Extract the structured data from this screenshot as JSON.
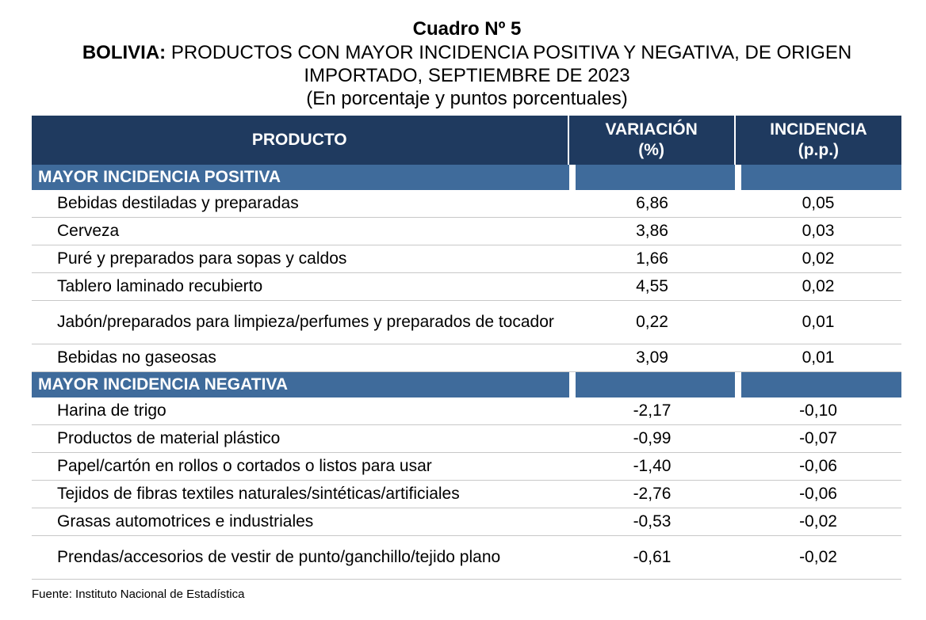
{
  "title": {
    "number": "Cuadro Nº 5",
    "country": "BOLIVIA:",
    "line1": "PRODUCTOS CON MAYOR INCIDENCIA POSITIVA Y NEGATIVA, DE ORIGEN",
    "line2": "IMPORTADO, SEPTIEMBRE DE 2023",
    "units": "(En porcentaje y puntos porcentuales)"
  },
  "header": {
    "product": "PRODUCTO",
    "variation_1": "VARIACIÓN",
    "variation_2": "(%)",
    "incidence_1": "INCIDENCIA",
    "incidence_2": "(p.p.)"
  },
  "positive": {
    "label": "MAYOR INCIDENCIA POSITIVA",
    "rows": [
      {
        "product": "Bebidas destiladas y preparadas",
        "variation": "6,86",
        "incidence": "0,05"
      },
      {
        "product": "Cerveza",
        "variation": "3,86",
        "incidence": "0,03"
      },
      {
        "product": "Puré y preparados para sopas y caldos",
        "variation": "1,66",
        "incidence": "0,02"
      },
      {
        "product": "Tablero laminado recubierto",
        "variation": "4,55",
        "incidence": "0,02"
      },
      {
        "product": "Jabón/preparados para limpieza/perfumes y preparados de tocador",
        "variation": "0,22",
        "incidence": "0,01"
      },
      {
        "product": "Bebidas no gaseosas",
        "variation": "3,09",
        "incidence": "0,01"
      }
    ]
  },
  "negative": {
    "label": "MAYOR INCIDENCIA NEGATIVA",
    "rows": [
      {
        "product": "Harina de trigo",
        "variation": "-2,17",
        "incidence": "-0,10"
      },
      {
        "product": "Productos de material plástico",
        "variation": "-0,99",
        "incidence": "-0,07"
      },
      {
        "product": "Papel/cartón en rollos o cortados o listos para usar",
        "variation": "-1,40",
        "incidence": "-0,06"
      },
      {
        "product": "Tejidos de fibras textiles naturales/sintéticas/artificiales",
        "variation": "-2,76",
        "incidence": "-0,06"
      },
      {
        "product": "Grasas automotrices e industriales",
        "variation": "-0,53",
        "incidence": "-0,02"
      },
      {
        "product": "Prendas/accesorios de vestir de punto/ganchillo/tejido plano",
        "variation": "-0,61",
        "incidence": "-0,02"
      }
    ]
  },
  "source": "Fuente: Instituto Nacional de Estadística",
  "colors": {
    "header_bg": "#1f3a5f",
    "section_bg": "#3f6b9b"
  }
}
